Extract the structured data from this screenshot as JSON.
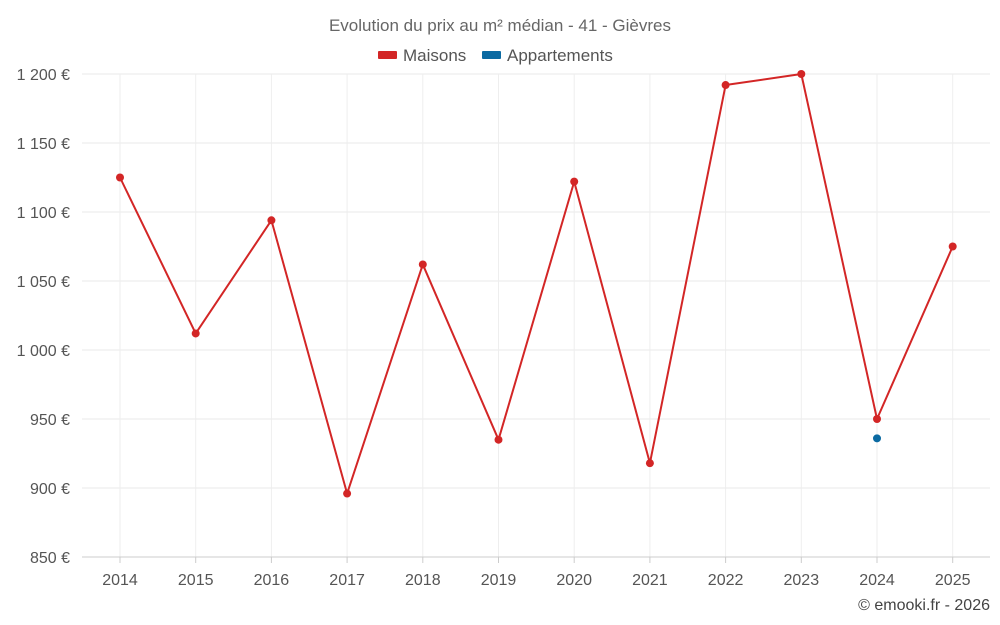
{
  "chart_data": {
    "type": "line",
    "title": "Evolution du prix au m² médian - 41 - Gièvres",
    "categories": [
      "2014",
      "2015",
      "2016",
      "2017",
      "2018",
      "2019",
      "2020",
      "2021",
      "2022",
      "2023",
      "2024",
      "2025"
    ],
    "series": [
      {
        "name": "Maisons",
        "color": "#d32626",
        "values": [
          1125,
          1012,
          1094,
          896,
          1062,
          935,
          1122,
          918,
          1192,
          1200,
          950,
          1075
        ]
      },
      {
        "name": "Appartements",
        "color": "#0b6aa2",
        "values": [
          null,
          null,
          null,
          null,
          null,
          null,
          null,
          null,
          null,
          null,
          936,
          null
        ]
      }
    ],
    "ylim": [
      850,
      1200
    ],
    "yticks": [
      850,
      900,
      950,
      1000,
      1050,
      1100,
      1150,
      1200
    ],
    "ytick_labels": [
      "850 €",
      "900 €",
      "950 €",
      "1 000 €",
      "1 050 €",
      "1 100 €",
      "1 150 €",
      "1 200 €"
    ],
    "grid": true,
    "legend_position": "top-center",
    "xlabel": "",
    "ylabel": ""
  },
  "credit": "© emooki.fr - 2026"
}
